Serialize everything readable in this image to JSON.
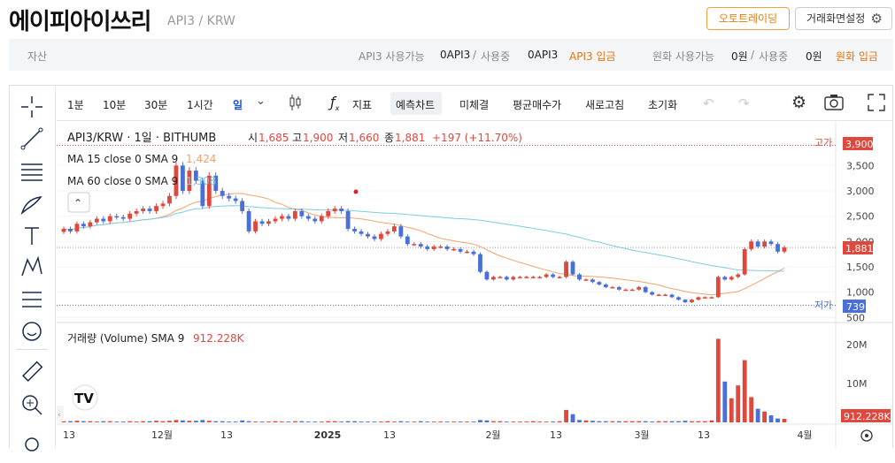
{
  "header": {
    "coin_name": "에이피아이쓰리",
    "pair": "API3 / KRW",
    "auto_trade": "오토트레이딩",
    "screen_settings": "거래화면설정"
  },
  "asset_bar": {
    "label": "자산",
    "api3_avail_label": "API3 사용가능",
    "api3_avail": "0API3",
    "slash": "/",
    "api3_used_label": "사용중",
    "api3_used": "0API3",
    "api3_deposit": "API3 입금",
    "krw_avail_label": "원화 사용가능",
    "krw_avail": "0원",
    "krw_used_label": "사용중",
    "krw_used": "0원",
    "krw_deposit": "원화 입금"
  },
  "toolbar": {
    "tf_1m": "1분",
    "tf_10m": "10분",
    "tf_30m": "30분",
    "tf_1h": "1시간",
    "tf_day": "일",
    "indicator": "지표",
    "forecast": "예측차트",
    "unfilled": "미체결",
    "avg_buy": "평균매수가",
    "refresh": "새로고침",
    "reset": "초기화"
  },
  "legend": {
    "symbol": "API3/KRW · 1일 · BITHUMB",
    "o_label": "시",
    "o": "1,685",
    "h_label": "고",
    "h": "1,900",
    "l_label": "저",
    "l": "1,660",
    "c_label": "종",
    "c": "1,881",
    "change": "+197 (+11.70%)",
    "ma15": "MA 15 close 0 SMA 9",
    "ma15_val": "1,424",
    "ma60": "MA 60 close 0 SMA 9",
    "ma60_val": "1,308",
    "vol": "거래량 (Volume) SMA 9",
    "vol_val": "912.228K"
  },
  "markers": {
    "high_label": "고가",
    "high_value": "3,900",
    "low_label": "저가",
    "low_value": "739",
    "last_value": "1,881",
    "vol_last": "912.228K"
  },
  "colors": {
    "up": "#e0473d",
    "down": "#4a6fd8",
    "ma15": "#f2a36b",
    "ma60": "#7fcce0",
    "accent": "#e8730c"
  },
  "chart_data": {
    "type": "candlestick",
    "price_axis": {
      "ticks": [
        500,
        1000,
        1500,
        2000,
        2500,
        3000,
        3500,
        3900
      ],
      "labels": [
        "500",
        "1,000",
        "1,500",
        "2,000",
        "2,500",
        "3,000",
        "3,500"
      ],
      "range": [
        400,
        4100
      ]
    },
    "volume_axis": {
      "ticks": [
        10000000,
        20000000
      ],
      "labels": [
        "10M",
        "20M"
      ]
    },
    "time_labels": [
      "13",
      "12월",
      "13",
      "2025",
      "13",
      "2월",
      "13",
      "3월",
      "13",
      "4월"
    ],
    "high": 3900,
    "low": 739,
    "last": 1881,
    "closes": [
      2250,
      2200,
      2350,
      2300,
      2380,
      2450,
      2400,
      2500,
      2480,
      2450,
      2550,
      2600,
      2650,
      2600,
      2700,
      2750,
      2900,
      3500,
      3000,
      3400,
      3200,
      2700,
      3300,
      3000,
      2900,
      2850,
      2800,
      2600,
      2200,
      2400,
      2350,
      2400,
      2450,
      2500,
      2450,
      2600,
      2500,
      2450,
      2400,
      2500,
      2600,
      2650,
      2600,
      2250,
      2200,
      2150,
      2100,
      2050,
      2150,
      2200,
      2300,
      2100,
      1950,
      1950,
      1900,
      1850,
      1900,
      1900,
      1850,
      1850,
      1800,
      1800,
      1750,
      1400,
      1250,
      1300,
      1300,
      1250,
      1300,
      1300,
      1300,
      1300,
      1300,
      1350,
      1300,
      1300,
      1600,
      1350,
      1250,
      1250,
      1200,
      1150,
      1100,
      1100,
      1050,
      1050,
      1050,
      1100,
      1000,
      950,
      950,
      950,
      900,
      850,
      800,
      850,
      900,
      900,
      900,
      1300,
      1250,
      1300,
      1350,
      1850,
      2000,
      1900,
      2000,
      1950,
      1800,
      1881
    ],
    "volumes": [
      0.3,
      0.3,
      0.4,
      0.3,
      0.3,
      0.2,
      0.3,
      0.3,
      0.2,
      0.2,
      0.3,
      0.2,
      0.3,
      0.3,
      0.4,
      0.3,
      0.4,
      0.6,
      0.5,
      0.4,
      0.4,
      0.6,
      0.4,
      0.3,
      0.3,
      0.2,
      0.2,
      0.5,
      0.3,
      0.2,
      0.2,
      0.2,
      0.3,
      0.2,
      0.2,
      0.3,
      0.3,
      0.2,
      0.2,
      0.2,
      0.3,
      0.3,
      0.2,
      0.3,
      0.3,
      0.2,
      0.2,
      0.2,
      0.2,
      0.3,
      0.2,
      0.3,
      0.2,
      0.2,
      0.3,
      0.2,
      0.2,
      0.2,
      0.2,
      0.2,
      0.2,
      0.2,
      0.2,
      0.6,
      0.5,
      0.3,
      0.3,
      0.2,
      0.2,
      0.2,
      0.2,
      0.3,
      0.2,
      0.2,
      0.2,
      0.3,
      3.2,
      2.1,
      0.6,
      0.5,
      0.4,
      0.3,
      0.3,
      0.3,
      0.3,
      0.3,
      0.3,
      0.3,
      0.3,
      0.2,
      0.3,
      0.3,
      0.3,
      0.3,
      0.4,
      0.3,
      0.3,
      0.3,
      0.5,
      21.5,
      10.5,
      6.2,
      9.5,
      16.0,
      6.5,
      3.5,
      2.8,
      1.8,
      1.0,
      0.9
    ]
  }
}
